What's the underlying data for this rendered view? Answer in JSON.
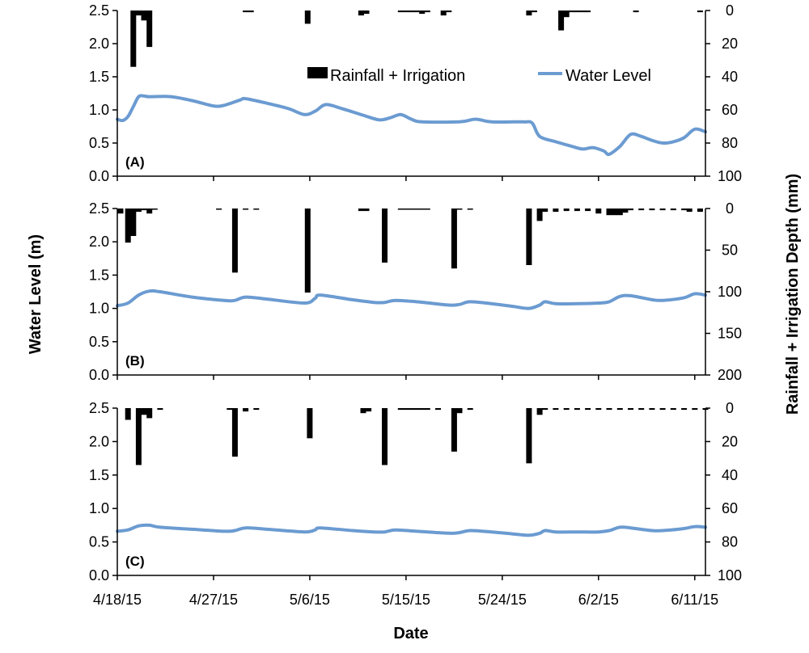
{
  "colors": {
    "bar": "#000000",
    "line": "#6b9bd1",
    "axis": "#000000"
  },
  "shared": {
    "xlabel": "Date",
    "ylabel_left": "Water Level (m)",
    "ylabel_right": "Rainfall + Irrigation Depth (mm)",
    "date_ticks": [
      "4/18/15",
      "4/27/15",
      "5/6/15",
      "5/15/15",
      "5/24/15",
      "6/2/15",
      "6/11/15"
    ],
    "date_tick_days": [
      0,
      9,
      18,
      27,
      36,
      45,
      54
    ],
    "x_range": [
      0,
      55
    ]
  },
  "legend": {
    "placement": "top-center of panel A",
    "bar_label": "Rainfall + Irrigation",
    "line_label": "Water Level"
  },
  "chart_data": [
    {
      "type": "bar+line",
      "panel_label": "(A)",
      "ylim_left": [
        0,
        2.5
      ],
      "yticks_left": [
        "0.0",
        "0.5",
        "1.0",
        "1.5",
        "2.0",
        "2.5"
      ],
      "ylim_right": [
        100,
        0
      ],
      "yticks_right": [
        "0",
        "20",
        "40",
        "60",
        "80",
        "100"
      ],
      "rainfall_irrigation": [
        [
          1.5,
          34
        ],
        [
          2.0,
          3
        ],
        [
          2.5,
          6
        ],
        [
          3.0,
          22
        ],
        [
          12.0,
          1
        ],
        [
          12.5,
          1
        ],
        [
          17.8,
          8
        ],
        [
          22.8,
          3
        ],
        [
          23.3,
          2
        ],
        [
          26.5,
          1
        ],
        [
          27.0,
          1
        ],
        [
          27.5,
          1
        ],
        [
          28.0,
          1
        ],
        [
          28.5,
          2
        ],
        [
          29.0,
          1
        ],
        [
          30.5,
          3
        ],
        [
          31.0,
          1
        ],
        [
          38.5,
          3
        ],
        [
          39.0,
          1
        ],
        [
          41.5,
          12
        ],
        [
          42.0,
          4
        ],
        [
          42.5,
          1
        ],
        [
          43.0,
          1
        ],
        [
          43.5,
          1
        ],
        [
          44.0,
          1
        ],
        [
          48.5,
          1
        ],
        [
          54.5,
          1
        ]
      ],
      "water_level": [
        [
          0,
          0.86
        ],
        [
          0.5,
          0.84
        ],
        [
          1.0,
          0.9
        ],
        [
          1.5,
          1.05
        ],
        [
          2.0,
          1.2
        ],
        [
          2.5,
          1.21
        ],
        [
          3.0,
          1.2
        ],
        [
          5.0,
          1.2
        ],
        [
          7.0,
          1.14
        ],
        [
          9.0,
          1.06
        ],
        [
          10.0,
          1.07
        ],
        [
          11.5,
          1.15
        ],
        [
          12.0,
          1.17
        ],
        [
          14.0,
          1.1
        ],
        [
          16.0,
          1.02
        ],
        [
          17.5,
          0.93
        ],
        [
          18.5,
          0.98
        ],
        [
          19.5,
          1.08
        ],
        [
          21.0,
          1.02
        ],
        [
          23.0,
          0.92
        ],
        [
          24.5,
          0.85
        ],
        [
          25.5,
          0.88
        ],
        [
          26.5,
          0.93
        ],
        [
          27.5,
          0.86
        ],
        [
          28.5,
          0.82
        ],
        [
          32.0,
          0.82
        ],
        [
          33.5,
          0.86
        ],
        [
          35.0,
          0.82
        ],
        [
          38.0,
          0.82
        ],
        [
          38.8,
          0.8
        ],
        [
          39.5,
          0.6
        ],
        [
          41.0,
          0.52
        ],
        [
          42.5,
          0.45
        ],
        [
          43.5,
          0.41
        ],
        [
          44.5,
          0.43
        ],
        [
          45.5,
          0.38
        ],
        [
          46.0,
          0.33
        ],
        [
          47.0,
          0.45
        ],
        [
          48.0,
          0.63
        ],
        [
          49.0,
          0.6
        ],
        [
          50.0,
          0.54
        ],
        [
          51.0,
          0.5
        ],
        [
          52.0,
          0.52
        ],
        [
          53.0,
          0.58
        ],
        [
          54.0,
          0.71
        ],
        [
          55.0,
          0.67
        ]
      ]
    },
    {
      "type": "bar+line",
      "panel_label": "(B)",
      "ylim_left": [
        0,
        2.5
      ],
      "yticks_left": [
        "0.0",
        "0.5",
        "1.0",
        "1.5",
        "2.0",
        "2.5"
      ],
      "ylim_right": [
        200,
        0
      ],
      "yticks_right": [
        "0",
        "50",
        "100",
        "150",
        "200"
      ],
      "rainfall_irrigation": [
        [
          0.3,
          6
        ],
        [
          1.0,
          41
        ],
        [
          1.5,
          33
        ],
        [
          2.0,
          4
        ],
        [
          2.5,
          2
        ],
        [
          3.0,
          6
        ],
        [
          3.5,
          1
        ],
        [
          9.5,
          1
        ],
        [
          11.0,
          77
        ],
        [
          12.0,
          1
        ],
        [
          13.0,
          1
        ],
        [
          17.8,
          101
        ],
        [
          22.8,
          3
        ],
        [
          23.3,
          3
        ],
        [
          25.0,
          65
        ],
        [
          26.5,
          1
        ],
        [
          27.0,
          1
        ],
        [
          27.5,
          1
        ],
        [
          28.0,
          1
        ],
        [
          28.5,
          1
        ],
        [
          29.0,
          1
        ],
        [
          31.5,
          72
        ],
        [
          32.0,
          1
        ],
        [
          33.0,
          1
        ],
        [
          38.5,
          68
        ],
        [
          39.5,
          15
        ],
        [
          40.0,
          4
        ],
        [
          41.0,
          4
        ],
        [
          42.0,
          3
        ],
        [
          43.0,
          3
        ],
        [
          44.0,
          3
        ],
        [
          45.0,
          6
        ],
        [
          46.0,
          8
        ],
        [
          46.5,
          8
        ],
        [
          47.0,
          8
        ],
        [
          47.5,
          5
        ],
        [
          48.0,
          2
        ],
        [
          49.0,
          2
        ],
        [
          50.0,
          2
        ],
        [
          51.0,
          2
        ],
        [
          52.0,
          2
        ],
        [
          53.0,
          2
        ],
        [
          53.5,
          4
        ],
        [
          54.5,
          4
        ]
      ],
      "water_level": [
        [
          0,
          1.04
        ],
        [
          1.0,
          1.08
        ],
        [
          2.0,
          1.2
        ],
        [
          3.0,
          1.26
        ],
        [
          4.0,
          1.25
        ],
        [
          7.0,
          1.17
        ],
        [
          10.0,
          1.12
        ],
        [
          11.0,
          1.12
        ],
        [
          12.0,
          1.17
        ],
        [
          14.0,
          1.14
        ],
        [
          17.5,
          1.08
        ],
        [
          18.5,
          1.15
        ],
        [
          19.0,
          1.2
        ],
        [
          22.0,
          1.13
        ],
        [
          24.0,
          1.09
        ],
        [
          25.0,
          1.09
        ],
        [
          26.0,
          1.12
        ],
        [
          28.0,
          1.1
        ],
        [
          31.0,
          1.05
        ],
        [
          32.0,
          1.06
        ],
        [
          33.0,
          1.1
        ],
        [
          35.0,
          1.07
        ],
        [
          37.0,
          1.03
        ],
        [
          38.5,
          1.0
        ],
        [
          39.5,
          1.05
        ],
        [
          40.0,
          1.1
        ],
        [
          41.0,
          1.07
        ],
        [
          43.0,
          1.07
        ],
        [
          45.0,
          1.08
        ],
        [
          46.0,
          1.1
        ],
        [
          47.0,
          1.18
        ],
        [
          48.0,
          1.19
        ],
        [
          50.0,
          1.13
        ],
        [
          51.0,
          1.12
        ],
        [
          53.0,
          1.16
        ],
        [
          54.0,
          1.22
        ],
        [
          55.0,
          1.2
        ]
      ]
    },
    {
      "type": "bar+line",
      "panel_label": "(C)",
      "ylim_left": [
        0,
        2.5
      ],
      "yticks_left": [
        "0.0",
        "0.5",
        "1.0",
        "1.5",
        "2.0",
        "2.5"
      ],
      "ylim_right": [
        100,
        0
      ],
      "yticks_right": [
        "0",
        "20",
        "40",
        "60",
        "80",
        "100"
      ],
      "rainfall_irrigation": [
        [
          1.0,
          7
        ],
        [
          2.0,
          34
        ],
        [
          2.5,
          4
        ],
        [
          3.0,
          6
        ],
        [
          4.0,
          1
        ],
        [
          10.5,
          1
        ],
        [
          11.0,
          29
        ],
        [
          12.0,
          2
        ],
        [
          13.0,
          1
        ],
        [
          18.0,
          18
        ],
        [
          23.0,
          3
        ],
        [
          23.5,
          2
        ],
        [
          25.0,
          34
        ],
        [
          26.5,
          1
        ],
        [
          27.0,
          1
        ],
        [
          27.5,
          1
        ],
        [
          28.0,
          1
        ],
        [
          28.5,
          1
        ],
        [
          29.0,
          1
        ],
        [
          30.0,
          1
        ],
        [
          31.5,
          26
        ],
        [
          32.0,
          3
        ],
        [
          33.0,
          1
        ],
        [
          38.5,
          33
        ],
        [
          39.5,
          4
        ],
        [
          40.0,
          1
        ],
        [
          41.0,
          1
        ],
        [
          42.0,
          1
        ],
        [
          43.0,
          1
        ],
        [
          44.0,
          1
        ],
        [
          45.0,
          1
        ],
        [
          46.0,
          1
        ],
        [
          47.0,
          1
        ],
        [
          48.0,
          1
        ],
        [
          49.0,
          1
        ],
        [
          50.0,
          1
        ],
        [
          51.0,
          1
        ],
        [
          52.0,
          1
        ],
        [
          53.0,
          1
        ],
        [
          54.0,
          1
        ],
        [
          55.0,
          1
        ]
      ],
      "water_level": [
        [
          0,
          0.66
        ],
        [
          1.0,
          0.68
        ],
        [
          2.0,
          0.74
        ],
        [
          3.0,
          0.75
        ],
        [
          4.0,
          0.72
        ],
        [
          7.0,
          0.69
        ],
        [
          10.0,
          0.66
        ],
        [
          11.0,
          0.67
        ],
        [
          12.0,
          0.71
        ],
        [
          14.0,
          0.69
        ],
        [
          17.5,
          0.65
        ],
        [
          18.5,
          0.68
        ],
        [
          19.0,
          0.71
        ],
        [
          22.0,
          0.67
        ],
        [
          24.0,
          0.65
        ],
        [
          25.0,
          0.65
        ],
        [
          26.0,
          0.68
        ],
        [
          28.0,
          0.66
        ],
        [
          31.0,
          0.63
        ],
        [
          32.0,
          0.64
        ],
        [
          33.0,
          0.67
        ],
        [
          35.0,
          0.65
        ],
        [
          37.0,
          0.62
        ],
        [
          38.5,
          0.6
        ],
        [
          39.5,
          0.63
        ],
        [
          40.0,
          0.67
        ],
        [
          41.0,
          0.65
        ],
        [
          43.0,
          0.65
        ],
        [
          45.0,
          0.65
        ],
        [
          46.0,
          0.67
        ],
        [
          47.0,
          0.72
        ],
        [
          48.0,
          0.71
        ],
        [
          50.0,
          0.67
        ],
        [
          51.0,
          0.67
        ],
        [
          53.0,
          0.7
        ],
        [
          54.0,
          0.73
        ],
        [
          55.0,
          0.72
        ]
      ]
    }
  ]
}
